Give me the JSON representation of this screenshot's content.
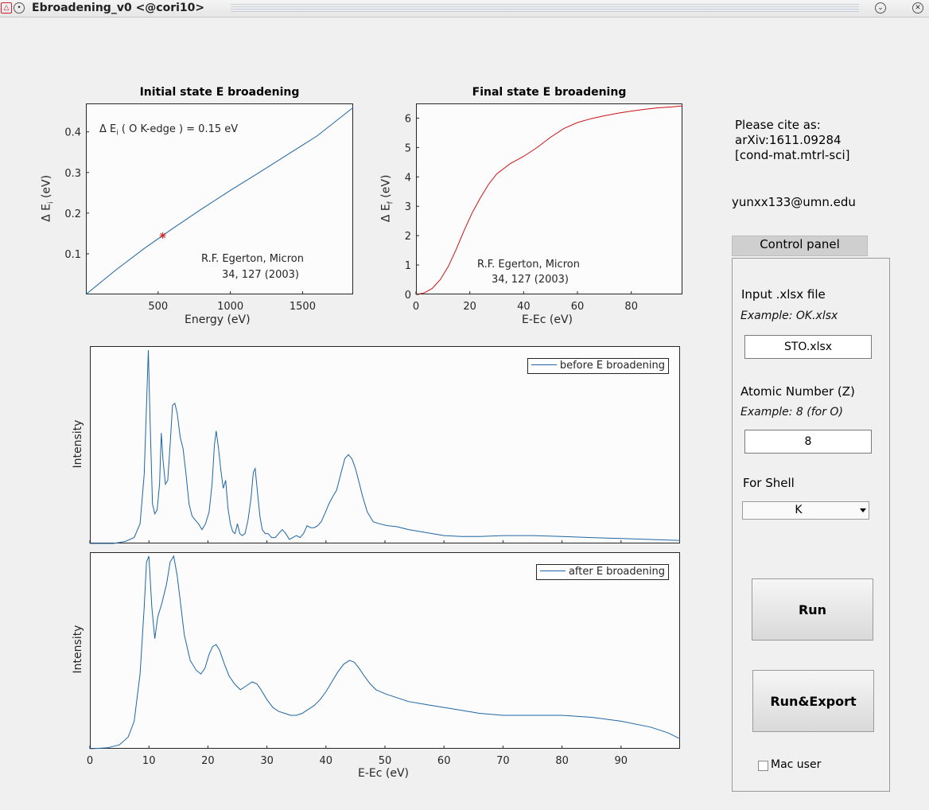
{
  "window": {
    "title": "Ebroadening_v0 <@cori10>"
  },
  "plot1": {
    "title": "Initial state E broadening",
    "xlabel": "Energy (eV)",
    "ylabel": "Δ E",
    "ylabel_sub": "i",
    "ylabel_unit": " (eV)",
    "xticks": [
      "500",
      "1000",
      "1500"
    ],
    "yticks": [
      "0.1",
      "0.2",
      "0.3",
      "0.4"
    ],
    "annotation_pre": "Δ E",
    "annotation_sub": "i",
    "annotation_post": "  ( O K-edge ) = 0.15 eV",
    "citation_line1": "R.F. Egerton, Micron",
    "citation_line2": "34, 127 (2003)",
    "line_color": "#1f66a6",
    "marker_color": "#d42020"
  },
  "plot2": {
    "title": "Final state E broadening",
    "xlabel": "E-Ec (eV)",
    "ylabel": "Δ E",
    "ylabel_sub": "f",
    "ylabel_unit": " (eV)",
    "xticks": [
      "0",
      "20",
      "40",
      "60",
      "80"
    ],
    "yticks": [
      "0",
      "1",
      "2",
      "3",
      "4",
      "5",
      "6"
    ],
    "citation_line1": "R.F. Egerton, Micron",
    "citation_line2": "34, 127 (2003)",
    "line_color": "#cc1111"
  },
  "plot3": {
    "ylabel": "Intensity",
    "legend": "before E broadening",
    "line_color": "#1f66a6"
  },
  "plot4": {
    "ylabel": "Intensity",
    "legend": "after E broadening",
    "xlabel": "E-Ec (eV)",
    "xticks": [
      "0",
      "10",
      "20",
      "30",
      "40",
      "50",
      "60",
      "70",
      "80",
      "90"
    ],
    "line_color": "#1f66a6"
  },
  "sidebar": {
    "cite_line1": "Please cite as:",
    "cite_line2": "arXiv:1611.09284",
    "cite_line3": "[cond-mat.mtrl-sci]",
    "email": "yunxx133@umn.edu"
  },
  "control_panel": {
    "title": "Control panel",
    "input_label": "Input .xlsx file",
    "input_example": "Example: OK.xlsx",
    "input_value": "STO.xlsx",
    "z_label": "Atomic Number (Z)",
    "z_example": "Example: 8 (for O)",
    "z_value": "8",
    "shell_label": "For Shell",
    "shell_value": "K",
    "run_label": "Run",
    "run_export_label": "Run&Export",
    "mac_label": "Mac user",
    "mac_checked": false
  },
  "chart_data": [
    {
      "type": "line",
      "title": "Initial state E broadening",
      "xlabel": "Energy (eV)",
      "ylabel": "Δ E_i (eV)",
      "xlim": [
        0,
        1850
      ],
      "ylim": [
        0,
        0.47
      ],
      "series": [
        {
          "x": [
            0,
            200,
            400,
            600,
            800,
            1000,
            1200,
            1400,
            1600,
            1850
          ],
          "values": [
            0.0,
            0.058,
            0.112,
            0.162,
            0.21,
            0.256,
            0.3,
            0.345,
            0.39,
            0.46
          ]
        }
      ],
      "marker": {
        "x": 532,
        "y": 0.145
      }
    },
    {
      "type": "line",
      "title": "Final state E broadening",
      "xlabel": "E-Ec (eV)",
      "ylabel": "Δ E_f (eV)",
      "xlim": [
        0,
        99
      ],
      "ylim": [
        0,
        6.5
      ],
      "series": [
        {
          "x": [
            0,
            3,
            6,
            9,
            12,
            15,
            18,
            21,
            24,
            27,
            30,
            35,
            40,
            45,
            50,
            55,
            60,
            65,
            70,
            75,
            80,
            85,
            90,
            95,
            99
          ],
          "values": [
            0,
            0.05,
            0.2,
            0.5,
            0.95,
            1.55,
            2.2,
            2.8,
            3.3,
            3.75,
            4.1,
            4.45,
            4.7,
            5.0,
            5.35,
            5.65,
            5.85,
            5.98,
            6.08,
            6.17,
            6.24,
            6.3,
            6.35,
            6.38,
            6.42
          ]
        }
      ]
    },
    {
      "type": "line",
      "ylabel": "Intensity",
      "xlim": [
        0,
        100
      ],
      "ylim": [
        0,
        1
      ],
      "series": [
        {
          "name": "before E broadening",
          "x": [
            0,
            4,
            6,
            7.5,
            8.5,
            9.2,
            9.6,
            9.9,
            10.2,
            10.6,
            11,
            11.4,
            11.8,
            12.1,
            12.4,
            12.8,
            13.2,
            13.6,
            14,
            14.4,
            14.8,
            15.3,
            15.8,
            16.3,
            16.8,
            17.3,
            17.8,
            18.4,
            19,
            19.6,
            20.2,
            20.7,
            21.1,
            21.4,
            21.8,
            22.2,
            22.6,
            23,
            23.4,
            23.8,
            24.2,
            24.6,
            25,
            25.4,
            25.8,
            26.3,
            26.8,
            27.3,
            27.7,
            28,
            28.4,
            28.8,
            29.2,
            29.7,
            30.2,
            30.8,
            31.4,
            32,
            32.6,
            33.2,
            33.8,
            34.4,
            35,
            35.6,
            36.2,
            36.8,
            37.4,
            38,
            38.6,
            39.2,
            39.8,
            40.5,
            41.2,
            41.8,
            42.5,
            43.2,
            43.8,
            44.4,
            45,
            45.6,
            46.2,
            47,
            48,
            49,
            50.5,
            52,
            54,
            56,
            58,
            60,
            63,
            66,
            70,
            75,
            80,
            85,
            90,
            95,
            100
          ],
          "values": [
            0,
            0,
            0.01,
            0.03,
            0.1,
            0.35,
            0.7,
            0.98,
            0.62,
            0.2,
            0.15,
            0.17,
            0.3,
            0.56,
            0.42,
            0.3,
            0.32,
            0.5,
            0.7,
            0.71,
            0.66,
            0.54,
            0.48,
            0.35,
            0.2,
            0.14,
            0.12,
            0.1,
            0.07,
            0.1,
            0.16,
            0.3,
            0.5,
            0.57,
            0.48,
            0.37,
            0.28,
            0.32,
            0.18,
            0.1,
            0.06,
            0.05,
            0.1,
            0.05,
            0.04,
            0.05,
            0.12,
            0.23,
            0.36,
            0.38,
            0.26,
            0.14,
            0.07,
            0.05,
            0.05,
            0.03,
            0.03,
            0.05,
            0.07,
            0.05,
            0.02,
            0.03,
            0.04,
            0.03,
            0.05,
            0.09,
            0.08,
            0.08,
            0.09,
            0.11,
            0.15,
            0.2,
            0.24,
            0.27,
            0.35,
            0.43,
            0.45,
            0.43,
            0.38,
            0.31,
            0.24,
            0.16,
            0.11,
            0.1,
            0.09,
            0.085,
            0.07,
            0.06,
            0.05,
            0.04,
            0.035,
            0.035,
            0.04,
            0.04,
            0.035,
            0.03,
            0.025,
            0.02,
            0.015
          ]
        }
      ]
    },
    {
      "type": "line",
      "ylabel": "Intensity",
      "xlabel": "E-Ec (eV)",
      "xlim": [
        0,
        100
      ],
      "ylim": [
        0,
        1
      ],
      "series": [
        {
          "name": "after E broadening",
          "x": [
            0,
            3,
            5,
            6.5,
            7.5,
            8.5,
            9.2,
            9.6,
            10,
            10.5,
            11,
            11.5,
            12.2,
            13,
            13.6,
            14.2,
            14.8,
            15.4,
            16,
            17,
            18,
            18.8,
            19.5,
            20.2,
            20.8,
            21.4,
            22,
            22.8,
            23.6,
            24.5,
            25.5,
            26.5,
            27.5,
            28.3,
            29,
            30,
            31,
            32,
            33,
            34,
            35,
            36,
            37,
            38,
            39,
            40,
            41,
            42,
            43,
            44,
            44.8,
            45.6,
            46.5,
            47.5,
            48.5,
            50,
            52,
            54,
            56,
            58,
            60,
            63,
            66,
            70,
            75,
            80,
            85,
            90,
            95,
            98,
            100
          ],
          "values": [
            0,
            0.005,
            0.02,
            0.06,
            0.14,
            0.38,
            0.72,
            0.95,
            0.98,
            0.72,
            0.56,
            0.67,
            0.74,
            0.84,
            0.95,
            0.98,
            0.88,
            0.73,
            0.58,
            0.45,
            0.4,
            0.38,
            0.41,
            0.48,
            0.52,
            0.53,
            0.5,
            0.43,
            0.37,
            0.33,
            0.3,
            0.32,
            0.34,
            0.33,
            0.3,
            0.25,
            0.21,
            0.19,
            0.18,
            0.17,
            0.17,
            0.18,
            0.2,
            0.22,
            0.25,
            0.29,
            0.34,
            0.39,
            0.43,
            0.45,
            0.44,
            0.41,
            0.37,
            0.33,
            0.3,
            0.28,
            0.26,
            0.24,
            0.23,
            0.22,
            0.21,
            0.195,
            0.18,
            0.17,
            0.17,
            0.17,
            0.16,
            0.14,
            0.11,
            0.08,
            0.05
          ]
        }
      ]
    }
  ]
}
